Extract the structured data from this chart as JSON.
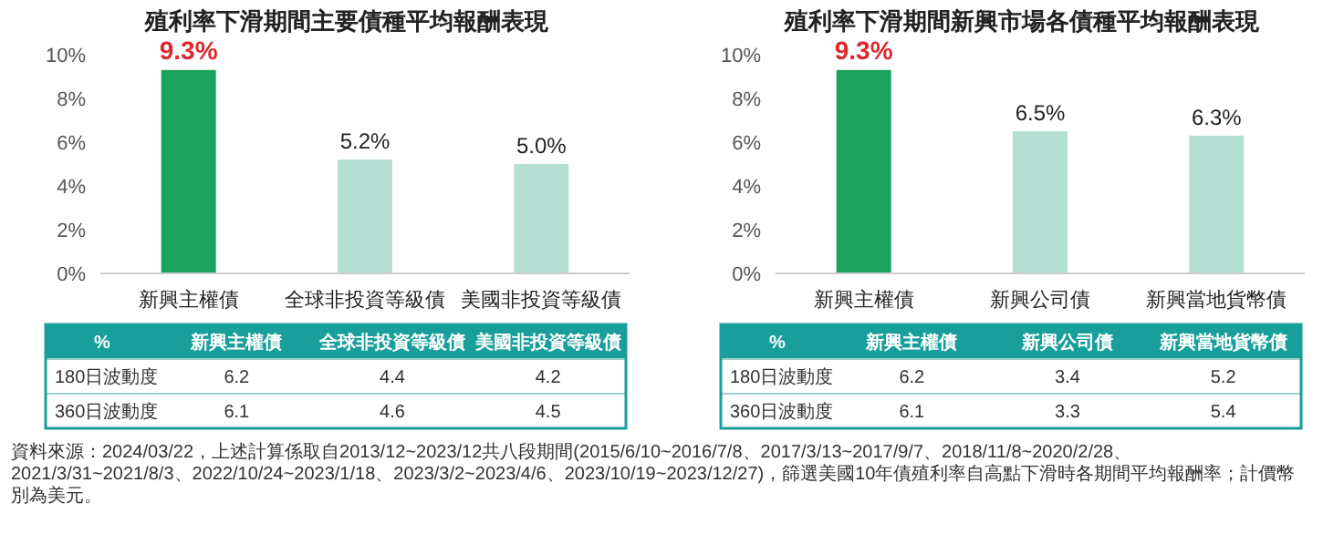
{
  "chart_data": [
    {
      "type": "bar",
      "title": "殖利率下滑期間主要債種平均報酬表現",
      "categories": [
        "新興主權債",
        "全球非投資等級債",
        "美國非投資等級債"
      ],
      "values": [
        9.3,
        5.2,
        5.0
      ],
      "colors": [
        "#1aa25e",
        "#b6dfd3",
        "#b6dfd3"
      ],
      "value_labels": [
        "9.3%",
        "5.2%",
        "5.0%"
      ],
      "ylim": [
        0,
        10
      ],
      "yticks": [
        {
          "value": 0,
          "label": "0%"
        },
        {
          "value": 2,
          "label": "2%"
        },
        {
          "value": 4,
          "label": "4%"
        },
        {
          "value": 6,
          "label": "6%"
        },
        {
          "value": 8,
          "label": "8%"
        },
        {
          "value": 10,
          "label": "10%"
        }
      ],
      "annotations": [
        "資料來源：2024/03/22，上述計算係取自2013/12~2023/12共八段期間(2015/6/10~2016/7/8、2017/3/13~2017/9/7、2018/11/8~2020/2/28、2021/3/31~2021/8/3、2022/10/24~2023/1/18、2023/3/2~2023/4/6、2023/10/19~2023/12/27)，篩選美國10年債殖利率自高點下滑時各期間平均報酬率；計價幣別為美元。"
      ]
    },
    {
      "type": "heatmap",
      "data_labels": true,
      "ylabel": "%",
      "categories": [
        "新興主權債",
        "全球非投資等級債",
        "美國非投資等級債"
      ],
      "y_categories": [
        "180日波動度",
        "360日波動度"
      ],
      "cells": [
        [
          6.2,
          4.4,
          4.2
        ],
        [
          6.1,
          4.6,
          4.5
        ]
      ]
    },
    {
      "type": "bar",
      "title": "殖利率下滑期間新興市場各債種平均報酬表現",
      "categories": [
        "新興主權債",
        "新興公司債",
        "新興當地貨幣債"
      ],
      "values": [
        9.3,
        6.5,
        6.3
      ],
      "colors": [
        "#1aa25e",
        "#b6dfd3",
        "#b6dfd3"
      ],
      "value_labels": [
        "9.3%",
        "6.5%",
        "6.3%"
      ],
      "ylim": [
        0,
        10
      ],
      "yticks": [
        {
          "value": 0,
          "label": "0%"
        },
        {
          "value": 2,
          "label": "2%"
        },
        {
          "value": 4,
          "label": "4%"
        },
        {
          "value": 6,
          "label": "6%"
        },
        {
          "value": 8,
          "label": "8%"
        },
        {
          "value": 10,
          "label": "10%"
        }
      ]
    },
    {
      "type": "heatmap",
      "data_labels": true,
      "ylabel": "%",
      "categories": [
        "新興主權債",
        "新興公司債",
        "新興當地貨幣債"
      ],
      "y_categories": [
        "180日波動度",
        "360日波動度"
      ],
      "cells": [
        [
          6.2,
          3.4,
          5.2
        ],
        [
          6.1,
          3.3,
          5.4
        ]
      ]
    }
  ]
}
